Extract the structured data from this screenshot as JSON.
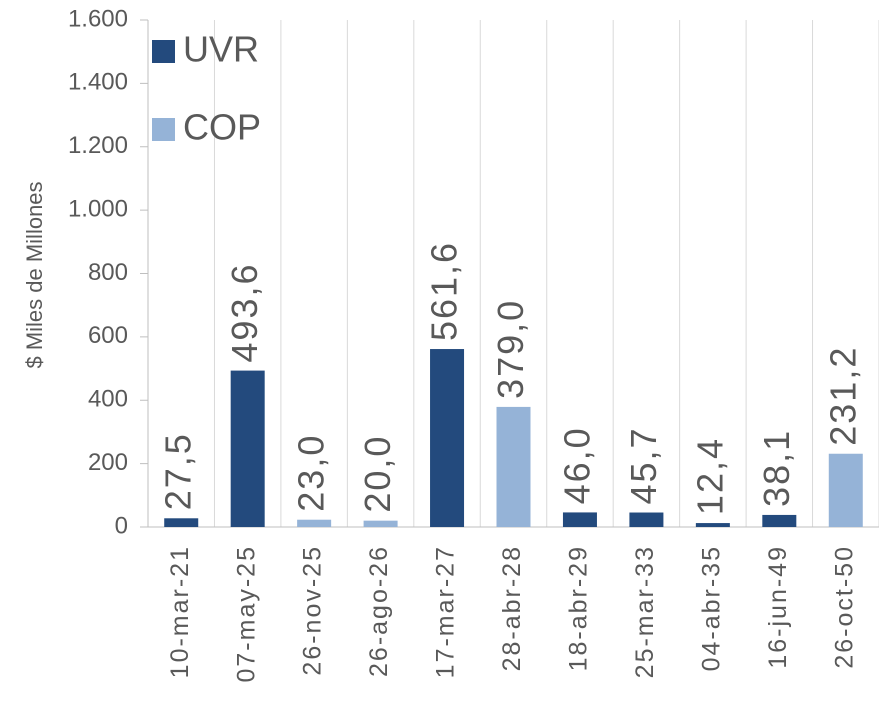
{
  "chart_data": {
    "type": "bar",
    "y_label": "$ Miles de Millones",
    "categories": [
      "10-mar-21",
      "07-may-25",
      "26-nov-25",
      "26-ago-26",
      "17-mar-27",
      "28-abr-28",
      "18-abr-29",
      "25-mar-33",
      "04-abr-35",
      "16-jun-49",
      "26-oct-50"
    ],
    "series": [
      {
        "name": "UVR",
        "color": "#234a7d",
        "values": [
          27.5,
          493.6,
          null,
          null,
          561.6,
          null,
          46.0,
          45.7,
          12.4,
          38.1,
          null
        ],
        "value_labels": [
          "27,5",
          "493,6",
          null,
          null,
          "561,6",
          null,
          "46,0",
          "45,7",
          "12,4",
          "38,1",
          null
        ]
      },
      {
        "name": "COP",
        "color": "#95b3d7",
        "values": [
          null,
          null,
          23.0,
          20.0,
          null,
          379.0,
          null,
          null,
          null,
          null,
          231.2
        ],
        "value_labels": [
          null,
          null,
          "23,0",
          "20,0",
          null,
          "379,0",
          null,
          null,
          null,
          null,
          "231,2"
        ]
      }
    ],
    "ylim": [
      0,
      1600
    ],
    "yticks": [
      0,
      200,
      400,
      600,
      800,
      {
        "value": 1000,
        "label": "1.000"
      },
      {
        "value": 1200,
        "label": "1.200"
      },
      {
        "value": 1400,
        "label": "1.400"
      },
      {
        "value": 1600,
        "label": "1.600"
      }
    ],
    "grid": false,
    "legend": "top-left"
  }
}
